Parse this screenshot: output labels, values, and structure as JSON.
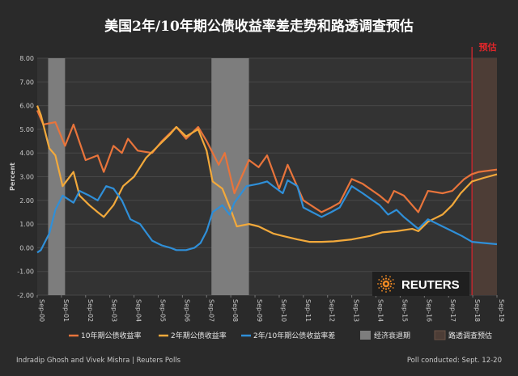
{
  "chart_data": {
    "type": "line",
    "title": "美国2年/10年期公债收益率差走势和路透调查预估",
    "ylabel": "Percent",
    "xlabel": "",
    "ylim": [
      -2.0,
      8.0
    ],
    "y_ticks": [
      "8.00",
      "7.00",
      "6.00",
      "5.00",
      "4.00",
      "3.00",
      "2.00",
      "1.00",
      "0.00",
      "-1.00",
      "-2.00"
    ],
    "x_categories": [
      "Sep-00",
      "Sep-01",
      "Sep-02",
      "Sep-03",
      "Sep-04",
      "Sep-05",
      "Sep-06",
      "Sep-07",
      "Sep-08",
      "Sep-09",
      "Sep-10",
      "Sep-11",
      "Sep-12",
      "Sep-13",
      "Sep-14",
      "Sep-15",
      "Sep-16",
      "Sep-17",
      "Sep-18",
      "Sep-19"
    ],
    "recessions": [
      {
        "label": "经济衰退期",
        "start": 2001.2,
        "end": 2001.9
      },
      {
        "label": "经济衰退期",
        "start": 2007.95,
        "end": 2009.5
      }
    ],
    "forecast": {
      "label": "路透调查预估",
      "start": 2018.72,
      "end": 2019.75,
      "marker_label": "预估"
    },
    "series": [
      {
        "name": "10年期公债收益率",
        "color": "#e8743b",
        "points": [
          [
            2000.75,
            5.8
          ],
          [
            2001.0,
            5.2
          ],
          [
            2001.5,
            5.3
          ],
          [
            2001.9,
            4.3
          ],
          [
            2002.25,
            5.2
          ],
          [
            2002.75,
            3.7
          ],
          [
            2003.25,
            3.9
          ],
          [
            2003.5,
            3.2
          ],
          [
            2003.9,
            4.3
          ],
          [
            2004.25,
            4.0
          ],
          [
            2004.5,
            4.6
          ],
          [
            2004.9,
            4.1
          ],
          [
            2005.5,
            4.0
          ],
          [
            2005.9,
            4.5
          ],
          [
            2006.5,
            5.1
          ],
          [
            2006.9,
            4.6
          ],
          [
            2007.4,
            5.1
          ],
          [
            2007.75,
            4.5
          ],
          [
            2008.25,
            3.5
          ],
          [
            2008.5,
            4.0
          ],
          [
            2008.9,
            2.3
          ],
          [
            2009.5,
            3.7
          ],
          [
            2009.9,
            3.4
          ],
          [
            2010.25,
            3.9
          ],
          [
            2010.75,
            2.5
          ],
          [
            2011.1,
            3.5
          ],
          [
            2011.75,
            2.0
          ],
          [
            2012.5,
            1.5
          ],
          [
            2012.9,
            1.7
          ],
          [
            2013.25,
            1.9
          ],
          [
            2013.75,
            2.9
          ],
          [
            2014.2,
            2.7
          ],
          [
            2014.9,
            2.2
          ],
          [
            2015.25,
            1.9
          ],
          [
            2015.5,
            2.4
          ],
          [
            2015.9,
            2.2
          ],
          [
            2016.5,
            1.5
          ],
          [
            2016.9,
            2.4
          ],
          [
            2017.5,
            2.3
          ],
          [
            2017.9,
            2.4
          ],
          [
            2018.4,
            2.9
          ],
          [
            2018.7,
            3.1
          ],
          [
            2019.0,
            3.2
          ],
          [
            2019.75,
            3.3
          ]
        ]
      },
      {
        "name": "2年期公债收益率",
        "color": "#f2a93b",
        "points": [
          [
            2000.75,
            6.0
          ],
          [
            2000.9,
            5.6
          ],
          [
            2001.25,
            4.2
          ],
          [
            2001.5,
            3.9
          ],
          [
            2001.8,
            2.6
          ],
          [
            2002.25,
            3.2
          ],
          [
            2002.5,
            2.2
          ],
          [
            2002.9,
            1.8
          ],
          [
            2003.25,
            1.5
          ],
          [
            2003.5,
            1.3
          ],
          [
            2003.9,
            1.8
          ],
          [
            2004.3,
            2.6
          ],
          [
            2004.75,
            3.0
          ],
          [
            2005.25,
            3.8
          ],
          [
            2005.75,
            4.3
          ],
          [
            2006.25,
            4.8
          ],
          [
            2006.5,
            5.1
          ],
          [
            2006.9,
            4.7
          ],
          [
            2007.4,
            5.0
          ],
          [
            2007.75,
            4.1
          ],
          [
            2008.0,
            2.8
          ],
          [
            2008.4,
            2.5
          ],
          [
            2008.75,
            1.6
          ],
          [
            2009.0,
            0.9
          ],
          [
            2009.5,
            1.0
          ],
          [
            2009.9,
            0.9
          ],
          [
            2010.5,
            0.6
          ],
          [
            2010.9,
            0.5
          ],
          [
            2011.5,
            0.35
          ],
          [
            2012.0,
            0.25
          ],
          [
            2012.5,
            0.25
          ],
          [
            2013.0,
            0.27
          ],
          [
            2013.75,
            0.35
          ],
          [
            2014.5,
            0.5
          ],
          [
            2015.0,
            0.65
          ],
          [
            2015.6,
            0.7
          ],
          [
            2016.25,
            0.8
          ],
          [
            2016.5,
            0.7
          ],
          [
            2016.9,
            1.1
          ],
          [
            2017.5,
            1.4
          ],
          [
            2017.9,
            1.8
          ],
          [
            2018.25,
            2.3
          ],
          [
            2018.72,
            2.8
          ],
          [
            2019.2,
            2.95
          ],
          [
            2019.75,
            3.1
          ]
        ]
      },
      {
        "name": "2年/10年期公债收益率差",
        "color": "#2f8fd8",
        "points": [
          [
            2000.75,
            -0.2
          ],
          [
            2000.9,
            -0.1
          ],
          [
            2001.25,
            0.6
          ],
          [
            2001.5,
            1.6
          ],
          [
            2001.8,
            2.2
          ],
          [
            2002.25,
            1.9
          ],
          [
            2002.5,
            2.4
          ],
          [
            2002.9,
            2.2
          ],
          [
            2003.25,
            2.0
          ],
          [
            2003.6,
            2.6
          ],
          [
            2003.9,
            2.5
          ],
          [
            2004.25,
            2.0
          ],
          [
            2004.6,
            1.2
          ],
          [
            2005.0,
            1.0
          ],
          [
            2005.5,
            0.3
          ],
          [
            2005.9,
            0.1
          ],
          [
            2006.25,
            0.0
          ],
          [
            2006.5,
            -0.1
          ],
          [
            2006.9,
            -0.1
          ],
          [
            2007.25,
            0.0
          ],
          [
            2007.5,
            0.2
          ],
          [
            2007.75,
            0.7
          ],
          [
            2008.0,
            1.5
          ],
          [
            2008.4,
            1.8
          ],
          [
            2008.7,
            1.4
          ],
          [
            2008.9,
            1.9
          ],
          [
            2009.4,
            2.6
          ],
          [
            2009.9,
            2.7
          ],
          [
            2010.25,
            2.8
          ],
          [
            2010.5,
            2.6
          ],
          [
            2010.9,
            2.3
          ],
          [
            2011.1,
            2.85
          ],
          [
            2011.5,
            2.6
          ],
          [
            2011.75,
            1.7
          ],
          [
            2012.5,
            1.3
          ],
          [
            2012.9,
            1.5
          ],
          [
            2013.25,
            1.7
          ],
          [
            2013.75,
            2.6
          ],
          [
            2014.2,
            2.3
          ],
          [
            2014.9,
            1.8
          ],
          [
            2015.25,
            1.4
          ],
          [
            2015.6,
            1.6
          ],
          [
            2015.9,
            1.3
          ],
          [
            2016.5,
            0.8
          ],
          [
            2016.9,
            1.2
          ],
          [
            2017.5,
            0.9
          ],
          [
            2017.9,
            0.7
          ],
          [
            2018.3,
            0.5
          ],
          [
            2018.72,
            0.25
          ],
          [
            2019.2,
            0.2
          ],
          [
            2019.75,
            0.15
          ]
        ]
      }
    ]
  },
  "logo": {
    "text": "REUTERS"
  },
  "footer": {
    "left": "Indradip  Ghosh and Vivek Mishra | Reuters Polls",
    "right": "Poll conducted:  Sept. 12-20"
  },
  "colors": {
    "background": "#2a2a2a",
    "plot_background": "#333333",
    "recession": "#7d7d7d",
    "forecast_fill": "#4d3d36",
    "forecast_line": "#c0282d",
    "forecast_label": "#e0262a",
    "text": "#e6e6e6",
    "axis_text": "#c8c8c8"
  }
}
